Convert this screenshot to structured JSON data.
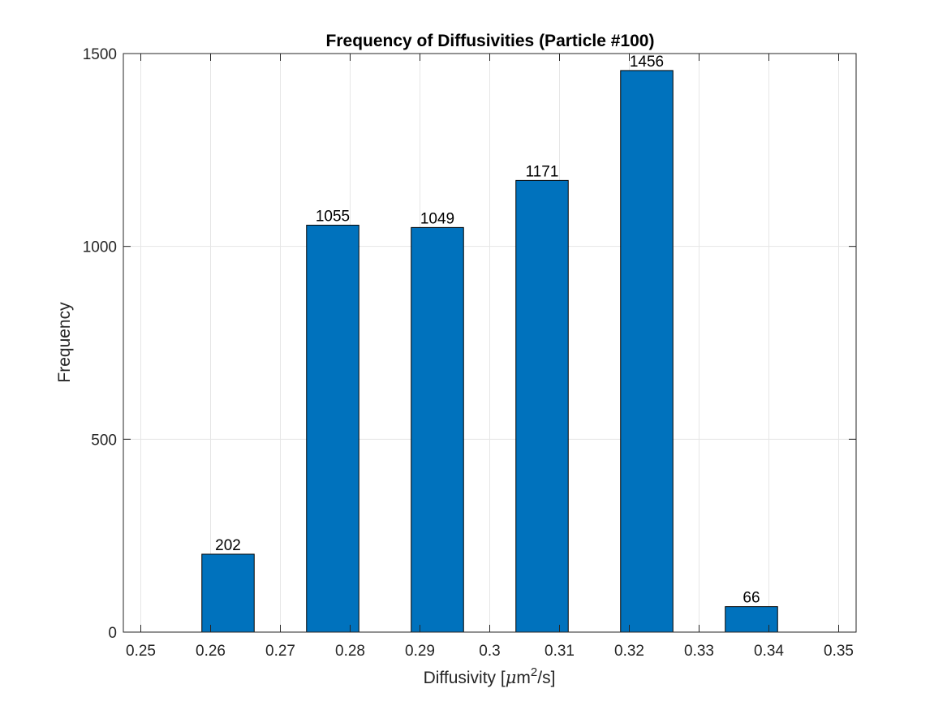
{
  "chart_data": {
    "type": "bar",
    "title": "Frequency of Diffusivities (Particle #100)",
    "xlabel": {
      "prefix": "Diffusivity [",
      "mu": "μ",
      "unit": "m",
      "exponent": "2",
      "suffix": "/s]"
    },
    "ylabel": "Frequency",
    "x": [
      0.2625,
      0.2775,
      0.2925,
      0.3075,
      0.3225,
      0.3375
    ],
    "values": [
      202,
      1055,
      1049,
      1171,
      1456,
      66
    ],
    "data_labels": [
      "202",
      "1055",
      "1049",
      "1171",
      "1456",
      "66"
    ],
    "bar_width": 0.0075,
    "xlim": [
      0.2475,
      0.3525
    ],
    "ylim": [
      0,
      1500
    ],
    "xticks": [
      0.25,
      0.26,
      0.27,
      0.28,
      0.29,
      0.3,
      0.31,
      0.32,
      0.33,
      0.34,
      0.35
    ],
    "xtick_labels": [
      "0.25",
      "0.26",
      "0.27",
      "0.28",
      "0.29",
      "0.3",
      "0.31",
      "0.32",
      "0.33",
      "0.34",
      "0.35"
    ],
    "yticks": [
      0,
      500,
      1000,
      1500
    ],
    "ytick_labels": [
      "0",
      "500",
      "1000",
      "1500"
    ],
    "grid": true,
    "colors": {
      "bar": "#0072BD",
      "bar_edge": "#000000",
      "grid": "#e6e6e6",
      "axis": "#262626"
    }
  }
}
